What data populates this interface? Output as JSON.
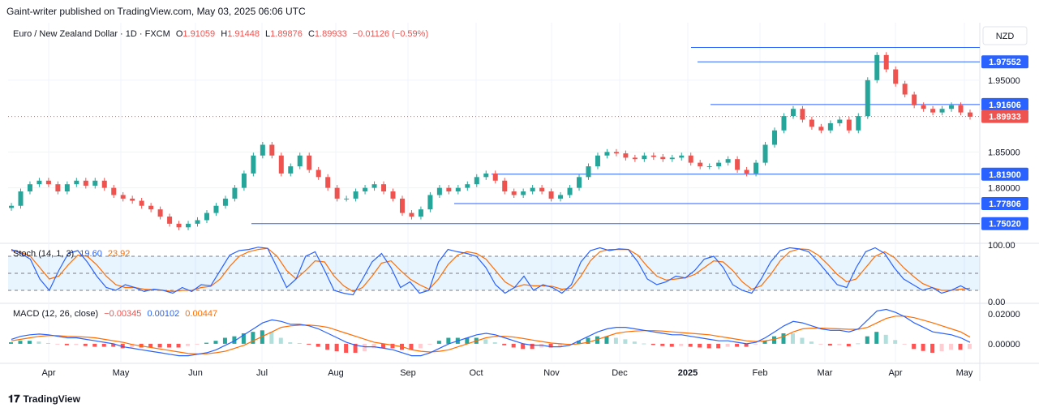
{
  "header": {
    "published": "Gaint-writer published on TradingView.com, May 03, 2025 06:06 UTC"
  },
  "footer": {
    "brand": "TradingView"
  },
  "symbol": {
    "name": "Euro / New Zealand Dollar · 1D · FXCM",
    "open_label": "O",
    "open": "1.91059",
    "high_label": "H",
    "high": "1.91448",
    "low_label": "L",
    "low": "1.89876",
    "close_label": "C",
    "close": "1.89933",
    "change": "−0.01126 (−0.59%)"
  },
  "currency": "NZD",
  "colors": {
    "up": "#26a69a",
    "down": "#ef5350",
    "level": "#2962ff",
    "stoch_k": "#2962ff",
    "stoch_d": "#ff6d00",
    "macd": "#2962ff",
    "signal": "#ff6d00"
  },
  "chart_data": [
    {
      "type": "candlestick",
      "title": "Euro / New Zealand Dollar · 1D · FXCM",
      "x_ticks": [
        "Apr",
        "May",
        "Jun",
        "Jul",
        "Aug",
        "Sep",
        "Oct",
        "Nov",
        "Dec",
        "2025",
        "Feb",
        "Mar",
        "Apr",
        "May"
      ],
      "y_ticks": [
        "1.95000",
        "1.85000",
        "1.80000"
      ],
      "ylim": [
        1.725,
        2.03
      ],
      "last_price": "1.89933",
      "levels": [
        {
          "label": "",
          "value": 1.9955,
          "from": "Dec"
        },
        {
          "label": "1.97552",
          "value": 1.97552,
          "from": "Dec"
        },
        {
          "label": "1.91606",
          "value": 1.91606,
          "from": "Dec"
        },
        {
          "label": "1.81900",
          "value": 1.819,
          "from": "Oct"
        },
        {
          "label": "1.77806",
          "value": 1.77806,
          "from": "Jun"
        },
        {
          "label": "1.75020",
          "value": 1.7502,
          "from": "Apr"
        }
      ],
      "close_series": [
        1.775,
        1.795,
        1.805,
        1.81,
        1.805,
        1.795,
        1.805,
        1.81,
        1.803,
        1.81,
        1.8,
        1.79,
        1.785,
        1.782,
        1.775,
        1.77,
        1.76,
        1.75,
        1.745,
        1.75,
        1.755,
        1.765,
        1.775,
        1.785,
        1.8,
        1.82,
        1.845,
        1.86,
        1.845,
        1.82,
        1.83,
        1.845,
        1.825,
        1.815,
        1.8,
        1.785,
        1.785,
        1.795,
        1.8,
        1.805,
        1.795,
        1.785,
        1.765,
        1.76,
        1.77,
        1.79,
        1.8,
        1.795,
        1.8,
        1.805,
        1.815,
        1.82,
        1.81,
        1.795,
        1.79,
        1.795,
        1.8,
        1.795,
        1.785,
        1.79,
        1.8,
        1.815,
        1.83,
        1.845,
        1.85,
        1.848,
        1.842,
        1.84,
        1.845,
        1.843,
        1.84,
        1.842,
        1.845,
        1.835,
        1.83,
        1.83,
        1.835,
        1.84,
        1.825,
        1.82,
        1.835,
        1.86,
        1.88,
        1.9,
        1.91,
        1.895,
        1.885,
        1.88,
        1.89,
        1.895,
        1.88,
        1.9,
        1.95,
        1.985,
        1.965,
        1.945,
        1.93,
        1.915,
        1.91,
        1.905,
        1.91,
        1.915,
        1.905,
        1.899
      ]
    },
    {
      "type": "line",
      "title": "Stoch (14, 1, 3)",
      "name": "Stoch",
      "params": "(14, 1, 3)",
      "k_label": "19.60",
      "d_label": "23.92",
      "y_ticks": [
        "100.00",
        "0.00"
      ],
      "ylim": [
        0,
        100
      ],
      "bands": [
        80,
        50,
        20
      ],
      "k_series": [
        92,
        85,
        75,
        40,
        20,
        55,
        85,
        90,
        70,
        45,
        25,
        20,
        30,
        25,
        18,
        22,
        20,
        15,
        25,
        18,
        30,
        28,
        55,
        82,
        90,
        92,
        96,
        94,
        60,
        25,
        40,
        80,
        88,
        55,
        20,
        15,
        12,
        40,
        70,
        85,
        60,
        25,
        35,
        15,
        20,
        70,
        92,
        88,
        85,
        80,
        60,
        30,
        15,
        25,
        45,
        20,
        30,
        25,
        15,
        30,
        70,
        90,
        95,
        90,
        93,
        92,
        70,
        40,
        30,
        35,
        45,
        42,
        55,
        75,
        80,
        60,
        30,
        20,
        15,
        40,
        70,
        90,
        95,
        93,
        88,
        70,
        50,
        30,
        25,
        60,
        88,
        95,
        85,
        60,
        40,
        30,
        20,
        25,
        15,
        20,
        28,
        19.6
      ],
      "d_series": [
        90,
        87,
        80,
        60,
        40,
        45,
        65,
        82,
        80,
        65,
        45,
        30,
        25,
        25,
        22,
        21,
        20,
        18,
        20,
        20,
        25,
        27,
        40,
        62,
        80,
        88,
        92,
        94,
        80,
        55,
        40,
        55,
        72,
        70,
        45,
        28,
        18,
        25,
        45,
        68,
        72,
        55,
        40,
        30,
        22,
        40,
        65,
        82,
        88,
        85,
        75,
        55,
        35,
        25,
        30,
        28,
        28,
        27,
        22,
        24,
        45,
        72,
        88,
        92,
        92,
        92,
        82,
        62,
        45,
        38,
        40,
        42,
        48,
        60,
        72,
        70,
        55,
        35,
        22,
        28,
        48,
        72,
        88,
        93,
        92,
        82,
        66,
        48,
        35,
        40,
        60,
        80,
        88,
        78,
        60,
        45,
        32,
        25,
        20,
        20,
        22,
        23.92
      ]
    },
    {
      "type": "bar",
      "title": "MACD (12, 26, close)",
      "name": "MACD",
      "params": "(12, 26, close)",
      "hist_label": "−0.00345",
      "macd_label": "0.00102",
      "signal_label": "0.00447",
      "y_ticks": [
        "0.02000",
        "0.00000"
      ],
      "ylim": [
        -0.012,
        0.026
      ],
      "macd_series": [
        0.003,
        0.005,
        0.006,
        0.0065,
        0.006,
        0.005,
        0.004,
        0.004,
        0.003,
        0.002,
        0.001,
        0,
        -0.002,
        -0.003,
        -0.004,
        -0.005,
        -0.006,
        -0.007,
        -0.008,
        -0.008,
        -0.007,
        -0.006,
        -0.004,
        -0.001,
        0.002,
        0.006,
        0.01,
        0.014,
        0.016,
        0.015,
        0.013,
        0.013,
        0.012,
        0.01,
        0.007,
        0.004,
        0.001,
        -0.001,
        -0.002,
        -0.002,
        -0.003,
        -0.004,
        -0.006,
        -0.008,
        -0.008,
        -0.006,
        -0.003,
        0,
        0.002,
        0.004,
        0.006,
        0.007,
        0.006,
        0.004,
        0.002,
        0,
        -0.001,
        -0.001,
        -0.002,
        -0.002,
        -0.001,
        0.002,
        0.005,
        0.008,
        0.01,
        0.011,
        0.011,
        0.01,
        0.009,
        0.008,
        0.007,
        0.006,
        0.006,
        0.005,
        0.004,
        0.003,
        0.002,
        0.002,
        0.001,
        0,
        0.001,
        0.004,
        0.008,
        0.012,
        0.015,
        0.014,
        0.012,
        0.01,
        0.009,
        0.009,
        0.008,
        0.01,
        0.016,
        0.022,
        0.023,
        0.021,
        0.018,
        0.014,
        0.011,
        0.008,
        0.007,
        0.006,
        0.004,
        0.001
      ],
      "signal_series": [
        0.002,
        0.003,
        0.004,
        0.005,
        0.0055,
        0.0055,
        0.005,
        0.0048,
        0.0045,
        0.004,
        0.003,
        0.002,
        0.001,
        -0.0005,
        -0.0015,
        -0.0025,
        -0.0035,
        -0.0045,
        -0.0055,
        -0.0065,
        -0.0068,
        -0.0067,
        -0.006,
        -0.005,
        -0.003,
        -0.001,
        0.002,
        0.005,
        0.008,
        0.011,
        0.012,
        0.0125,
        0.0125,
        0.012,
        0.011,
        0.009,
        0.007,
        0.005,
        0.003,
        0.001,
        0,
        -0.001,
        -0.002,
        -0.004,
        -0.005,
        -0.0055,
        -0.005,
        -0.004,
        -0.002,
        0,
        0.002,
        0.004,
        0.005,
        0.005,
        0.0045,
        0.0035,
        0.0025,
        0.0015,
        0.0005,
        0,
        -0.0005,
        0,
        0.001,
        0.003,
        0.005,
        0.007,
        0.008,
        0.0085,
        0.0088,
        0.0088,
        0.0085,
        0.008,
        0.0075,
        0.007,
        0.0065,
        0.006,
        0.005,
        0.004,
        0.003,
        0.002,
        0.0015,
        0.002,
        0.003,
        0.005,
        0.008,
        0.01,
        0.0105,
        0.0105,
        0.0102,
        0.01,
        0.0097,
        0.0097,
        0.011,
        0.014,
        0.017,
        0.0185,
        0.0185,
        0.0175,
        0.0158,
        0.014,
        0.012,
        0.01,
        0.008,
        0.00447
      ]
    }
  ]
}
